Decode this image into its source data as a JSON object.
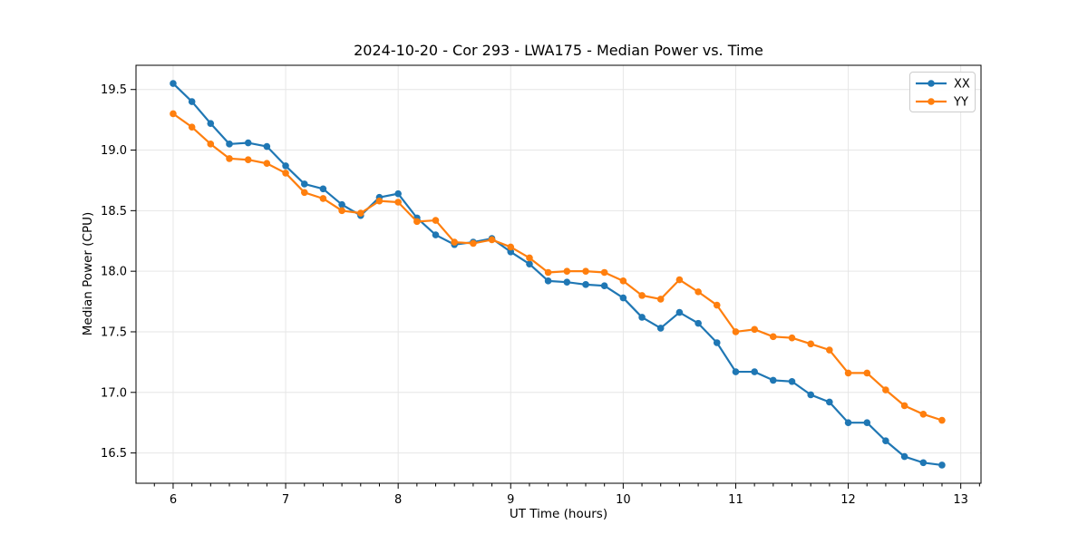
{
  "figure": {
    "background": "#ffffff",
    "grid_color": "#e6e6e6",
    "spine_color": "#000000"
  },
  "chart_data": {
    "type": "line",
    "title": "2024-10-20 - Cor 293 - LWA175 - Median Power vs. Time",
    "xlabel": "UT Time (hours)",
    "ylabel": "Median Power (CPU)",
    "xlim": [
      5.67,
      13.18
    ],
    "ylim": [
      16.25,
      19.7
    ],
    "xticks": [
      6,
      7,
      8,
      9,
      10,
      11,
      12,
      13
    ],
    "yticks": [
      16.5,
      17.0,
      17.5,
      18.0,
      18.5,
      19.0,
      19.5
    ],
    "x_minor_step_hours": 0.1667,
    "grid": true,
    "legend_position": "upper right",
    "x": [
      6.0,
      6.167,
      6.333,
      6.5,
      6.667,
      6.833,
      7.0,
      7.167,
      7.333,
      7.5,
      7.667,
      7.833,
      8.0,
      8.167,
      8.333,
      8.5,
      8.667,
      8.833,
      9.0,
      9.167,
      9.333,
      9.5,
      9.667,
      9.833,
      10.0,
      10.167,
      10.333,
      10.5,
      10.667,
      10.833,
      11.0,
      11.167,
      11.333,
      11.5,
      11.667,
      11.833,
      12.0,
      12.167,
      12.333,
      12.5,
      12.667,
      12.833
    ],
    "series": [
      {
        "name": "XX",
        "color": "#1f77b4",
        "values": [
          19.55,
          19.4,
          19.22,
          19.05,
          19.06,
          19.03,
          18.87,
          18.72,
          18.68,
          18.55,
          18.46,
          18.61,
          18.64,
          18.44,
          18.3,
          18.22,
          18.24,
          18.27,
          18.16,
          18.06,
          17.92,
          17.91,
          17.89,
          17.88,
          17.78,
          17.62,
          17.53,
          17.66,
          17.57,
          17.41,
          17.17,
          17.17,
          17.1,
          17.09,
          16.98,
          16.92,
          16.75,
          16.75,
          16.6,
          16.47,
          16.42,
          16.4
        ]
      },
      {
        "name": "YY",
        "color": "#ff7f0e",
        "values": [
          19.3,
          19.19,
          19.05,
          18.93,
          18.92,
          18.89,
          18.81,
          18.65,
          18.6,
          18.5,
          18.48,
          18.58,
          18.57,
          18.41,
          18.42,
          18.24,
          18.23,
          18.26,
          18.2,
          18.11,
          17.99,
          18.0,
          18.0,
          17.99,
          17.92,
          17.8,
          17.77,
          17.93,
          17.83,
          17.72,
          17.5,
          17.52,
          17.46,
          17.45,
          17.4,
          17.35,
          17.16,
          17.16,
          17.02,
          16.89,
          16.82,
          16.77
        ]
      }
    ]
  }
}
